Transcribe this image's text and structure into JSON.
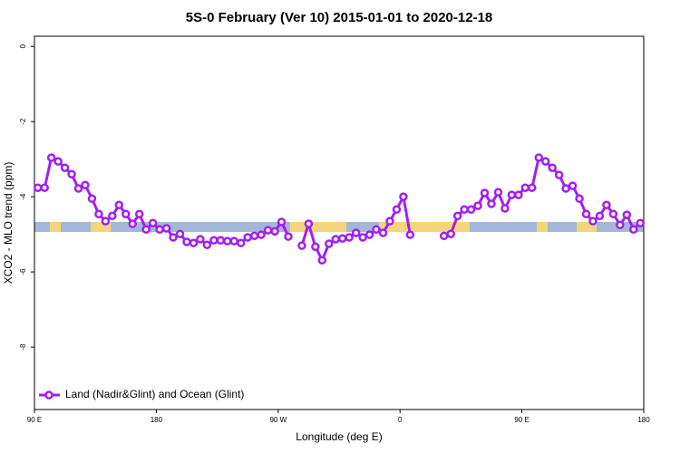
{
  "chart_data": {
    "type": "line",
    "title": "5S-0 February (Ver 10)   2015-01-01 to 2020-12-18",
    "xlabel": "Longitude (deg E)",
    "ylabel": "XCO2 - MLO trend (ppm)",
    "x": [
      92.5,
      97.5,
      102.5,
      107.5,
      112.5,
      117.5,
      122.5,
      127.5,
      132.5,
      137.5,
      142.5,
      147.5,
      152.5,
      157.5,
      162.5,
      167.5,
      172.5,
      177.5,
      182.5,
      187.5,
      192.5,
      197.5,
      202.5,
      207.5,
      212.5,
      217.5,
      222.5,
      227.5,
      232.5,
      237.5,
      242.5,
      247.5,
      252.5,
      257.5,
      262.5,
      267.5,
      272.5,
      277.5,
      282.5,
      287.5,
      292.5,
      297.5,
      302.5,
      307.5,
      312.5,
      317.5,
      322.5,
      327.5,
      332.5,
      337.5,
      342.5,
      347.5,
      352.5,
      357.5,
      362.5,
      367.5,
      372.5,
      377.5,
      382.5,
      387.5,
      392.5,
      397.5,
      402.5,
      407.5,
      412.5,
      417.5,
      422.5,
      427.5,
      432.5,
      437.5,
      442.5,
      447.5,
      452.5,
      457.5,
      462.5,
      467.5,
      472.5,
      477.5,
      482.5,
      487.5,
      492.5,
      497.5,
      502.5,
      507.5,
      512.5,
      517.5,
      522.5,
      527.5,
      532.5,
      537.5
    ],
    "series": [
      {
        "name": "Land (Nadir&Glint) and Ocean (Glint)",
        "color": "#a020f0",
        "values": [
          -3.76,
          -3.76,
          -2.96,
          -3.06,
          -3.23,
          -3.4,
          -3.78,
          -3.69,
          -4.05,
          -4.46,
          -4.65,
          -4.51,
          -4.22,
          -4.46,
          -4.72,
          -4.46,
          -4.87,
          -4.7,
          -4.87,
          -4.84,
          -5.08,
          -4.99,
          -5.2,
          -5.23,
          -5.13,
          -5.28,
          -5.16,
          -5.16,
          -5.18,
          -5.18,
          -5.23,
          -5.08,
          -5.04,
          -5.01,
          -4.89,
          -4.92,
          -4.67,
          -5.06,
          null,
          -5.3,
          -4.72,
          -5.33,
          -5.69,
          -5.25,
          -5.13,
          -5.11,
          -5.08,
          -4.96,
          -5.08,
          -5.01,
          -4.87,
          -4.96,
          -4.65,
          -4.34,
          -4.0,
          -5.01,
          null,
          null,
          null,
          null,
          -5.04,
          -4.99,
          -4.51,
          -4.34,
          -4.34,
          -4.24,
          -3.9,
          -4.19,
          -3.88,
          -4.31,
          -3.95,
          -3.95,
          -3.76,
          -3.76,
          -2.96,
          -3.06,
          -3.23,
          -3.42,
          -3.78,
          -3.71,
          -4.05,
          -4.46,
          -4.65,
          -4.51,
          -4.22,
          -4.46,
          -4.75,
          -4.48,
          -4.87,
          -4.7
        ]
      }
    ],
    "xlim": [
      90,
      540
    ],
    "xticks": [
      {
        "value": 90,
        "label": "90 E"
      },
      180,
      {
        "value": 270,
        "label": "90 W"
      },
      {
        "value": 360,
        "label": "0"
      },
      {
        "value": 450,
        "label": "90 E"
      },
      {
        "value": 540,
        "label": "180"
      }
    ],
    "ylim": [
      -9.66,
      0.27
    ],
    "yticks": [
      0,
      -2,
      -4,
      -6,
      -8
    ],
    "legend": "bottom-left"
  }
}
